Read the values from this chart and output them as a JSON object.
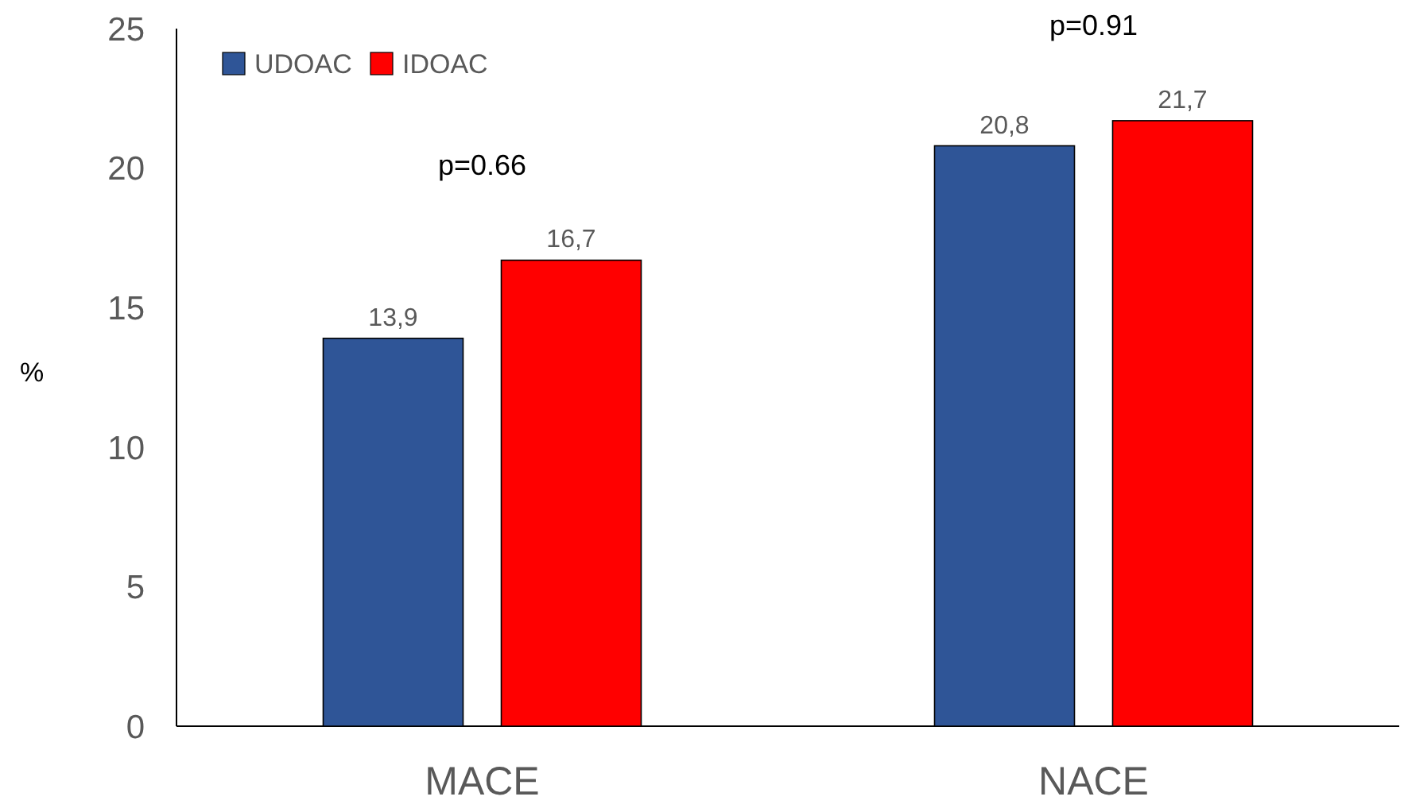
{
  "chart_data": {
    "type": "bar",
    "ylabel": "%",
    "categories": [
      "MACE",
      "NACE"
    ],
    "series": [
      {
        "name": "UDOAC",
        "color": "#2f5597",
        "values": [
          13.9,
          20.8
        ],
        "value_labels": [
          "13,9",
          "20,8"
        ]
      },
      {
        "name": "IDOAC",
        "color": "#ff0000",
        "values": [
          16.7,
          21.7
        ],
        "value_labels": [
          "16,7",
          "21,7"
        ]
      }
    ],
    "ylim": [
      0,
      25
    ],
    "yticks": [
      0,
      5,
      10,
      15,
      20,
      25
    ],
    "legend": "top left",
    "annotations": [
      "p=0.66",
      "p=0.91"
    ]
  }
}
